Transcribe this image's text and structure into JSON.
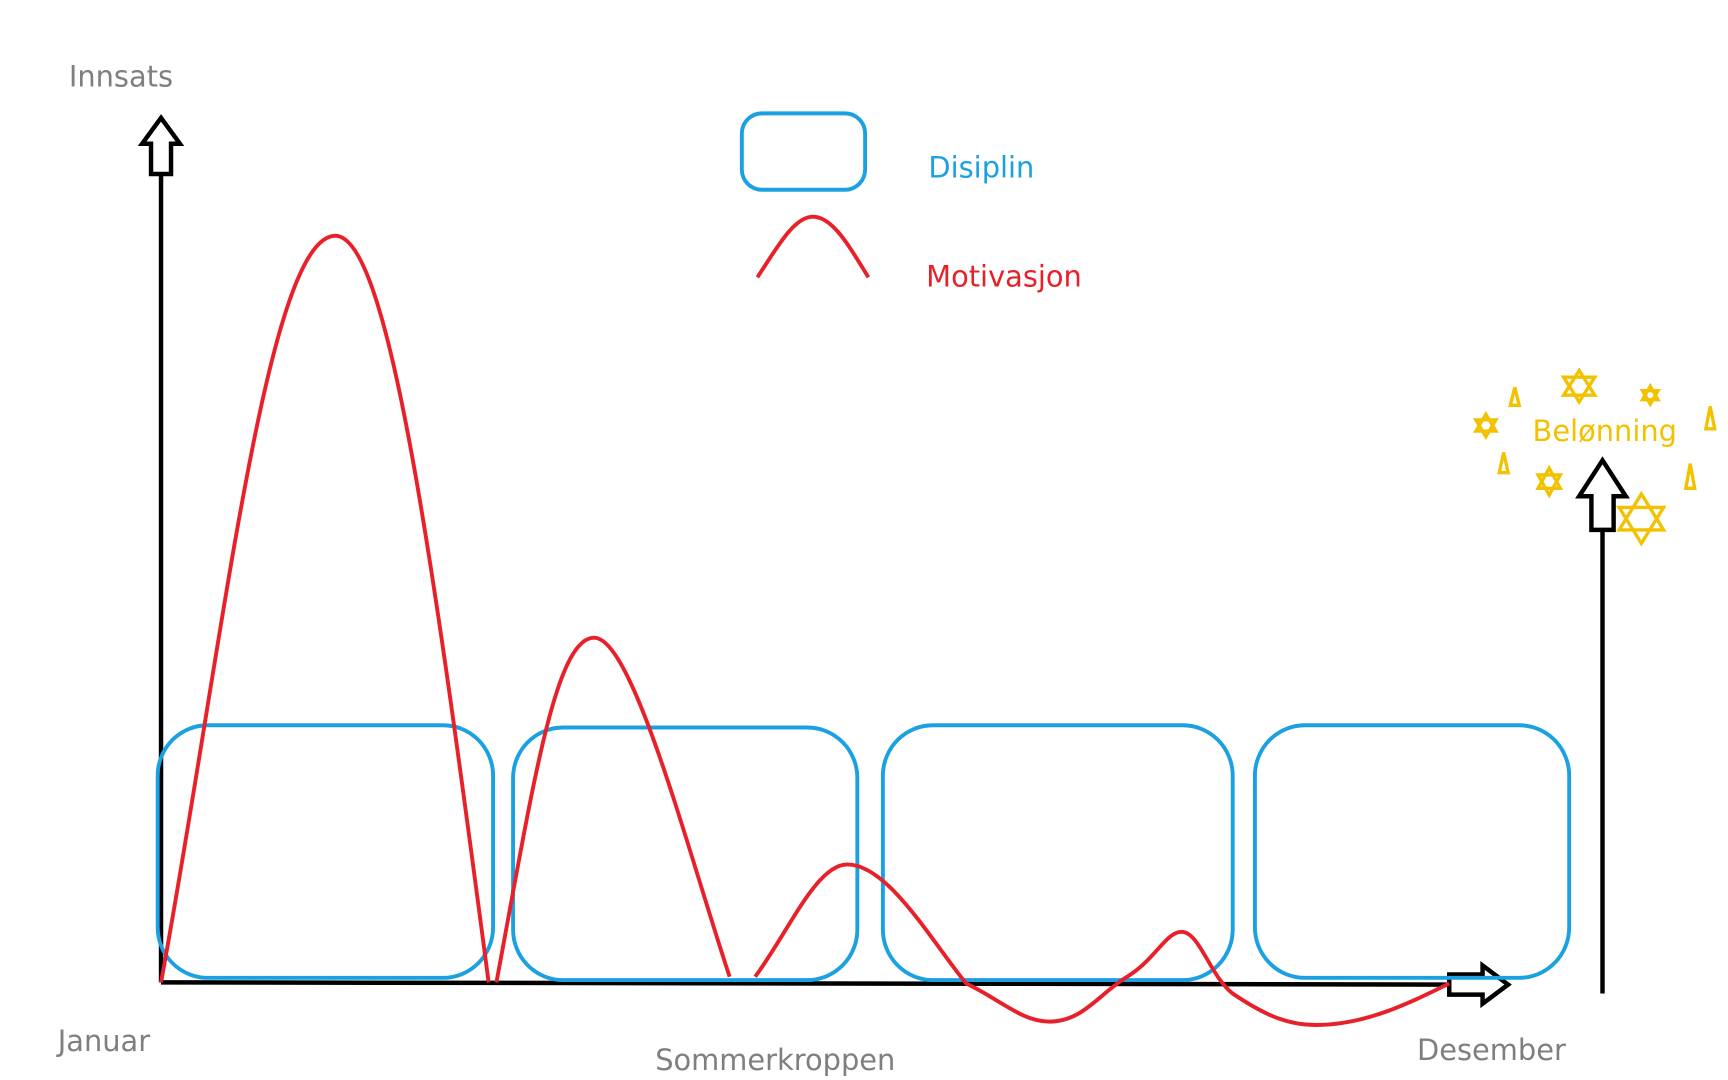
{
  "axis": {
    "y_label": "Innsats",
    "x_start": "Januar",
    "x_middle": "Sommerkroppen",
    "x_end": "Desember"
  },
  "legend": {
    "items": [
      {
        "label": "Disiplin"
      },
      {
        "label": "Motivasjon"
      }
    ]
  },
  "reward": {
    "label": "Belønning"
  }
}
